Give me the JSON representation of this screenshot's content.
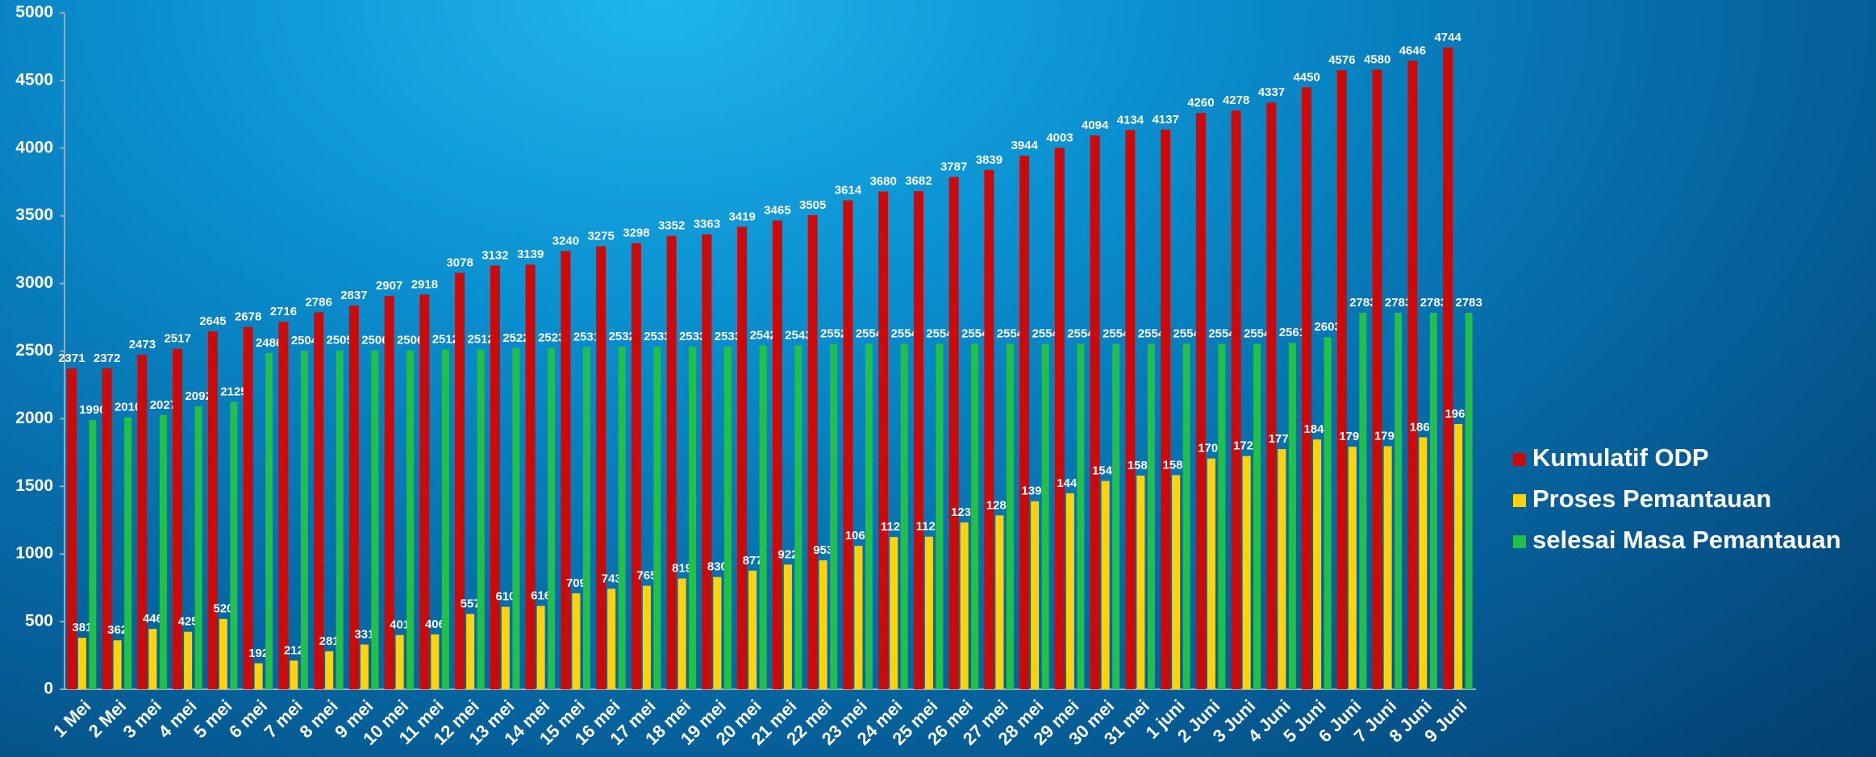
{
  "chart_data": {
    "type": "bar",
    "categories": [
      "1 Mei",
      "2 Mei",
      "3 mei",
      "4 mei",
      "5 mei",
      "6 mei",
      "7 mei",
      "8 mei",
      "9 mei",
      "10 mei",
      "11 mei",
      "12 mei",
      "13 mei",
      "14 mei",
      "15 mei",
      "16 mei",
      "17 mei",
      "18 mei",
      "19 mei",
      "20 mei",
      "21 mei",
      "22 mei",
      "23 mei",
      "24 mei",
      "25 mei",
      "26 mei",
      "27 mei",
      "28 mei",
      "29 mei",
      "30 mei",
      "31 mei",
      "1 juni",
      "2 Juni",
      "3 Juni",
      "4 Juni",
      "5 Juni",
      "6 Juni",
      "7 Juni",
      "8 Juni",
      "9 Juni"
    ],
    "series": [
      {
        "name": "Kumulatif ODP",
        "color": "#cc0a0a",
        "values": [
          2371,
          2372,
          2473,
          2517,
          2645,
          2678,
          2716,
          2786,
          2837,
          2907,
          2918,
          3078,
          3132,
          3139,
          3240,
          3275,
          3298,
          3352,
          3363,
          3419,
          3465,
          3505,
          3614,
          3680,
          3682,
          3787,
          3839,
          3944,
          4003,
          4094,
          4134,
          4137,
          4260,
          4278,
          4337,
          4450,
          4576,
          4580,
          4646,
          4744
        ]
      },
      {
        "name": "Proses Pemantauan",
        "color": "#ffd20a",
        "values": [
          381,
          362,
          446,
          425,
          520,
          192,
          212,
          281,
          331,
          401,
          406,
          557,
          610,
          616,
          709,
          743,
          765,
          819,
          830,
          877,
          922,
          953,
          1060,
          1126,
          1128,
          1233,
          1285,
          1390,
          1449,
          1540,
          1580,
          1583,
          1706,
          1724,
          1776,
          1847,
          1793,
          1797,
          1863,
          1961
        ]
      },
      {
        "name": "selesai Masa Pemantauan",
        "color": "#22c04a",
        "values": [
          1990,
          2010,
          2027,
          2092,
          2125,
          2486,
          2504,
          2505,
          2506,
          2506,
          2512,
          2512,
          2522,
          2523,
          2531,
          2532,
          2533,
          2533,
          2533,
          2542,
          2543,
          2552,
          2554,
          2554,
          2554,
          2554,
          2554,
          2554,
          2554,
          2554,
          2554,
          2554,
          2554,
          2554,
          2561,
          2603,
          2783,
          2783,
          2783,
          2783
        ]
      }
    ],
    "ylim": [
      0,
      5000
    ],
    "yticks": [
      0,
      500,
      1000,
      1500,
      2000,
      2500,
      3000,
      3500,
      4000,
      4500,
      5000
    ],
    "grid": false,
    "legend": "right"
  }
}
